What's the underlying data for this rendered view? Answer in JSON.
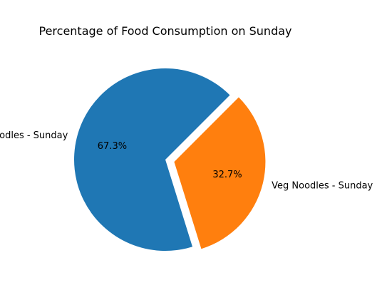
{
  "chart_data": {
    "type": "pie",
    "title": "Percentage of Food Consumption on Sunday",
    "categories": [
      "Egg Noodles - Sunday",
      "Veg Noodles - Sunday"
    ],
    "values": [
      67.3,
      32.7
    ],
    "percent_labels": [
      "67.3%",
      "32.7%"
    ],
    "colors": [
      "#1f77b4",
      "#ff7f0e"
    ],
    "exploded": [
      false,
      true
    ],
    "legend": "none"
  }
}
